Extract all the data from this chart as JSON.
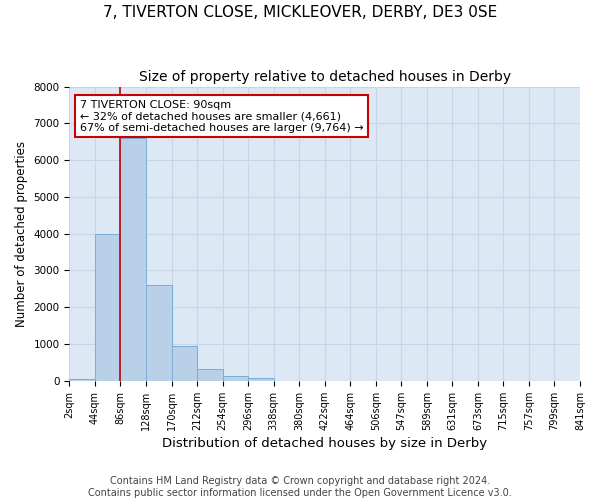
{
  "title": "7, TIVERTON CLOSE, MICKLEOVER, DERBY, DE3 0SE",
  "subtitle": "Size of property relative to detached houses in Derby",
  "xlabel": "Distribution of detached houses by size in Derby",
  "ylabel": "Number of detached properties",
  "bin_edges": [
    "2sqm",
    "44sqm",
    "86sqm",
    "128sqm",
    "170sqm",
    "212sqm",
    "254sqm",
    "296sqm",
    "338sqm",
    "380sqm",
    "422sqm",
    "464sqm",
    "506sqm",
    "547sqm",
    "589sqm",
    "631sqm",
    "673sqm",
    "715sqm",
    "757sqm",
    "799sqm",
    "841sqm"
  ],
  "bar_values": [
    60,
    4000,
    6600,
    2600,
    960,
    320,
    120,
    80,
    0,
    0,
    0,
    0,
    0,
    0,
    0,
    0,
    0,
    0,
    0,
    0
  ],
  "bar_color": "#b8d0e8",
  "bar_edge_color": "#7aaed6",
  "vline_position": 2,
  "vline_color": "#cc0000",
  "annotation_text_line1": "7 TIVERTON CLOSE: 90sqm",
  "annotation_text_line2": "← 32% of detached houses are smaller (4,661)",
  "annotation_text_line3": "67% of semi-detached houses are larger (9,764) →",
  "annotation_box_facecolor": "white",
  "annotation_box_edgecolor": "#cc0000",
  "grid_color": "#c8d4e8",
  "bg_color": "#dce8f4",
  "ylim": [
    0,
    8000
  ],
  "footer_line1": "Contains HM Land Registry data © Crown copyright and database right 2024.",
  "footer_line2": "Contains public sector information licensed under the Open Government Licence v3.0.",
  "title_fontsize": 11,
  "subtitle_fontsize": 10,
  "xlabel_fontsize": 9.5,
  "ylabel_fontsize": 8.5,
  "tick_fontsize": 7,
  "annotation_fontsize": 8,
  "footer_fontsize": 7
}
